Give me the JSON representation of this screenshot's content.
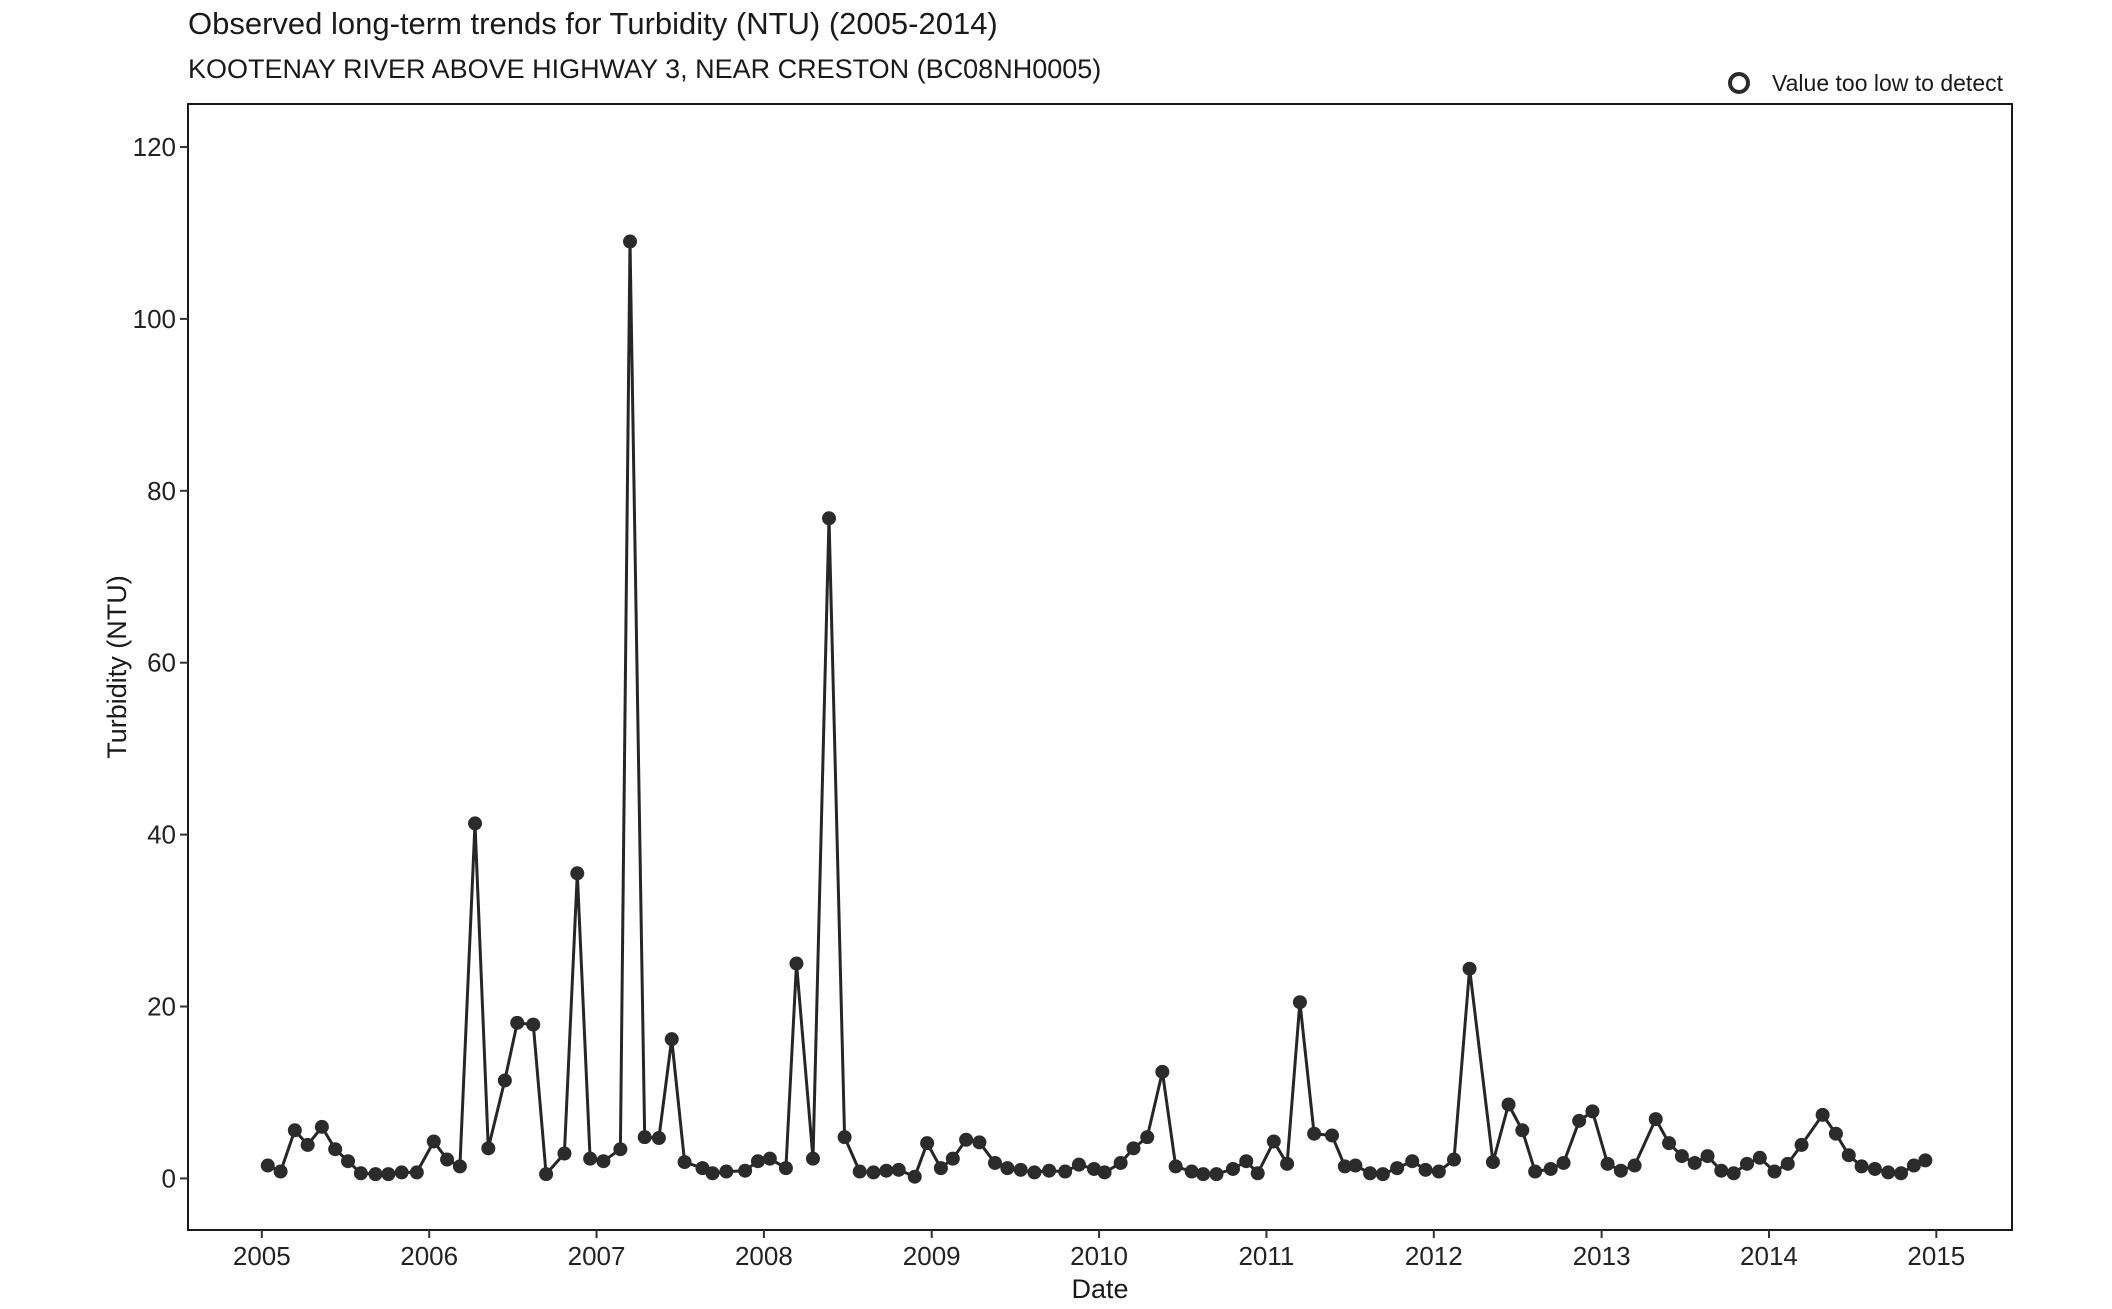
{
  "header": {
    "title": "Observed long-term trends for Turbidity (NTU) (2005-2014)",
    "subtitle": "KOOTENAY RIVER ABOVE HIGHWAY 3, NEAR CRESTON (BC08NH0005)"
  },
  "legend": {
    "label": "Value too low to detect",
    "position": "top-right"
  },
  "colors": {
    "line": "#262626",
    "point": "#2b2b2b",
    "frame": "#1a1a1a"
  },
  "chart_data": {
    "type": "line",
    "title": "Observed long-term trends for Turbidity (NTU) (2005-2014)",
    "subtitle": "KOOTENAY RIVER ABOVE HIGHWAY 3, NEAR CRESTON (BC08NH0005)",
    "xlabel": "Date",
    "ylabel": "Turbidity (NTU)",
    "xlim": [
      "2004-07-24",
      "2015-06-15"
    ],
    "ylim": [
      -6,
      125
    ],
    "x_ticks": [
      "2005",
      "2006",
      "2007",
      "2008",
      "2009",
      "2010",
      "2011",
      "2012",
      "2013",
      "2014",
      "2015"
    ],
    "y_ticks": [
      0,
      20,
      40,
      60,
      80,
      100,
      120
    ],
    "grid": false,
    "series": [
      {
        "markers": "filled-circle",
        "points": [
          {
            "date": "2005-01-14",
            "value": 1.5
          },
          {
            "date": "2005-02-11",
            "value": 0.8
          },
          {
            "date": "2005-03-14",
            "value": 5.6
          },
          {
            "date": "2005-04-11",
            "value": 3.9
          },
          {
            "date": "2005-05-12",
            "value": 6.0
          },
          {
            "date": "2005-06-10",
            "value": 3.4
          },
          {
            "date": "2005-07-08",
            "value": 2.0
          },
          {
            "date": "2005-08-05",
            "value": 0.6
          },
          {
            "date": "2005-09-06",
            "value": 0.5
          },
          {
            "date": "2005-10-04",
            "value": 0.5
          },
          {
            "date": "2005-11-02",
            "value": 0.7
          },
          {
            "date": "2005-12-05",
            "value": 0.7
          },
          {
            "date": "2006-01-11",
            "value": 4.3
          },
          {
            "date": "2006-02-09",
            "value": 2.2
          },
          {
            "date": "2006-03-09",
            "value": 1.4
          },
          {
            "date": "2006-04-11",
            "value": 41.3
          },
          {
            "date": "2006-05-10",
            "value": 3.5
          },
          {
            "date": "2006-06-15",
            "value": 11.4
          },
          {
            "date": "2006-07-12",
            "value": 18.1
          },
          {
            "date": "2006-08-16",
            "value": 17.9
          },
          {
            "date": "2006-09-13",
            "value": 0.5
          },
          {
            "date": "2006-10-23",
            "value": 2.9
          },
          {
            "date": "2006-11-20",
            "value": 35.5
          },
          {
            "date": "2006-12-18",
            "value": 2.3
          },
          {
            "date": "2007-01-16",
            "value": 2.0
          },
          {
            "date": "2007-02-22",
            "value": 3.4
          },
          {
            "date": "2007-03-15",
            "value": 109.0
          },
          {
            "date": "2007-04-16",
            "value": 4.8
          },
          {
            "date": "2007-05-17",
            "value": 4.7
          },
          {
            "date": "2007-06-14",
            "value": 16.2
          },
          {
            "date": "2007-07-12",
            "value": 1.9
          },
          {
            "date": "2007-08-20",
            "value": 1.2
          },
          {
            "date": "2007-09-11",
            "value": 0.6
          },
          {
            "date": "2007-10-11",
            "value": 0.8
          },
          {
            "date": "2007-11-21",
            "value": 0.9
          },
          {
            "date": "2007-12-19",
            "value": 2.0
          },
          {
            "date": "2008-01-14",
            "value": 2.3
          },
          {
            "date": "2008-02-18",
            "value": 1.2
          },
          {
            "date": "2008-03-12",
            "value": 25.0
          },
          {
            "date": "2008-04-17",
            "value": 2.3
          },
          {
            "date": "2008-05-22",
            "value": 76.8
          },
          {
            "date": "2008-06-25",
            "value": 4.8
          },
          {
            "date": "2008-07-28",
            "value": 0.8
          },
          {
            "date": "2008-08-27",
            "value": 0.7
          },
          {
            "date": "2008-09-24",
            "value": 0.9
          },
          {
            "date": "2008-10-21",
            "value": 1.0
          },
          {
            "date": "2008-11-25",
            "value": 0.2
          },
          {
            "date": "2008-12-22",
            "value": 4.1
          },
          {
            "date": "2009-01-21",
            "value": 1.2
          },
          {
            "date": "2009-02-16",
            "value": 2.3
          },
          {
            "date": "2009-03-17",
            "value": 4.5
          },
          {
            "date": "2009-04-15",
            "value": 4.2
          },
          {
            "date": "2009-05-19",
            "value": 1.8
          },
          {
            "date": "2009-06-15",
            "value": 1.2
          },
          {
            "date": "2009-07-14",
            "value": 1.0
          },
          {
            "date": "2009-08-13",
            "value": 0.7
          },
          {
            "date": "2009-09-14",
            "value": 0.9
          },
          {
            "date": "2009-10-19",
            "value": 0.8
          },
          {
            "date": "2009-11-18",
            "value": 1.6
          },
          {
            "date": "2009-12-21",
            "value": 1.1
          },
          {
            "date": "2010-01-13",
            "value": 0.7
          },
          {
            "date": "2010-02-17",
            "value": 1.8
          },
          {
            "date": "2010-03-17",
            "value": 3.5
          },
          {
            "date": "2010-04-16",
            "value": 4.8
          },
          {
            "date": "2010-05-19",
            "value": 12.4
          },
          {
            "date": "2010-06-17",
            "value": 1.4
          },
          {
            "date": "2010-07-22",
            "value": 0.8
          },
          {
            "date": "2010-08-16",
            "value": 0.5
          },
          {
            "date": "2010-09-14",
            "value": 0.5
          },
          {
            "date": "2010-10-20",
            "value": 1.1
          },
          {
            "date": "2010-11-18",
            "value": 2.0
          },
          {
            "date": "2010-12-13",
            "value": 0.6
          },
          {
            "date": "2011-01-17",
            "value": 4.3
          },
          {
            "date": "2011-02-15",
            "value": 1.7
          },
          {
            "date": "2011-03-15",
            "value": 20.5
          },
          {
            "date": "2011-04-15",
            "value": 5.2
          },
          {
            "date": "2011-05-24",
            "value": 5.0
          },
          {
            "date": "2011-06-21",
            "value": 1.4
          },
          {
            "date": "2011-07-14",
            "value": 1.5
          },
          {
            "date": "2011-08-15",
            "value": 0.6
          },
          {
            "date": "2011-09-12",
            "value": 0.5
          },
          {
            "date": "2011-10-13",
            "value": 1.2
          },
          {
            "date": "2011-11-15",
            "value": 2.0
          },
          {
            "date": "2011-12-14",
            "value": 1.0
          },
          {
            "date": "2012-01-12",
            "value": 0.8
          },
          {
            "date": "2012-02-14",
            "value": 2.2
          },
          {
            "date": "2012-03-19",
            "value": 24.4
          },
          {
            "date": "2012-05-09",
            "value": 1.9
          },
          {
            "date": "2012-06-12",
            "value": 8.6
          },
          {
            "date": "2012-07-12",
            "value": 5.6
          },
          {
            "date": "2012-08-09",
            "value": 0.8
          },
          {
            "date": "2012-09-12",
            "value": 1.1
          },
          {
            "date": "2012-10-10",
            "value": 1.8
          },
          {
            "date": "2012-11-13",
            "value": 6.7
          },
          {
            "date": "2012-12-12",
            "value": 7.8
          },
          {
            "date": "2013-01-14",
            "value": 1.7
          },
          {
            "date": "2013-02-12",
            "value": 0.9
          },
          {
            "date": "2013-03-14",
            "value": 1.5
          },
          {
            "date": "2013-04-29",
            "value": 6.9
          },
          {
            "date": "2013-05-28",
            "value": 4.1
          },
          {
            "date": "2013-06-25",
            "value": 2.6
          },
          {
            "date": "2013-07-23",
            "value": 1.8
          },
          {
            "date": "2013-08-20",
            "value": 2.6
          },
          {
            "date": "2013-09-19",
            "value": 0.9
          },
          {
            "date": "2013-10-16",
            "value": 0.6
          },
          {
            "date": "2013-11-14",
            "value": 1.7
          },
          {
            "date": "2013-12-12",
            "value": 2.4
          },
          {
            "date": "2014-01-13",
            "value": 0.8
          },
          {
            "date": "2014-02-11",
            "value": 1.7
          },
          {
            "date": "2014-03-13",
            "value": 3.9
          },
          {
            "date": "2014-04-28",
            "value": 7.4
          },
          {
            "date": "2014-05-27",
            "value": 5.2
          },
          {
            "date": "2014-06-24",
            "value": 2.7
          },
          {
            "date": "2014-07-22",
            "value": 1.4
          },
          {
            "date": "2014-08-20",
            "value": 1.1
          },
          {
            "date": "2014-09-18",
            "value": 0.7
          },
          {
            "date": "2014-10-16",
            "value": 0.6
          },
          {
            "date": "2014-11-13",
            "value": 1.5
          },
          {
            "date": "2014-12-08",
            "value": 2.1
          }
        ]
      }
    ]
  }
}
